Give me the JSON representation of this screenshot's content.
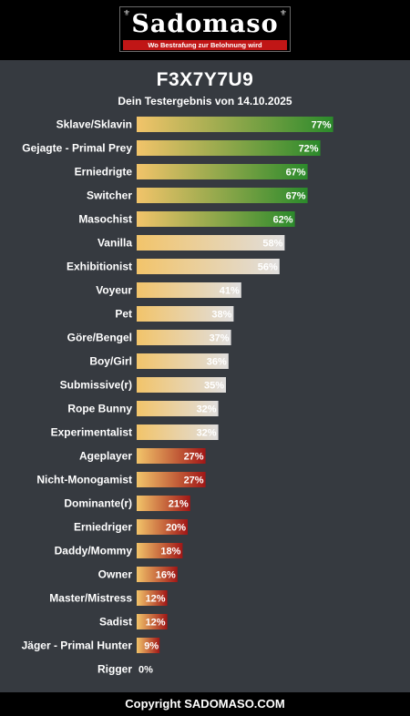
{
  "header": {
    "logo_text": "Sadomaso",
    "logo_tagline": "Wo Bestrafung zur Belohnung wird"
  },
  "result": {
    "code": "F3X7Y7U9",
    "subtitle": "Dein Testergebnis von 14.10.2025"
  },
  "colors": {
    "background": "#363a40",
    "bar_start": "#f2c46a",
    "high": "#2b8a2b",
    "mid": "#e0dede",
    "low": "#a11616",
    "brand_red": "#c01616"
  },
  "chart_data": {
    "type": "bar",
    "orientation": "horizontal",
    "categories": [
      "Sklave/Sklavin",
      "Gejagte - Primal Prey",
      "Erniedrigte",
      "Switcher",
      "Masochist",
      "Vanilla",
      "Exhibitionist",
      "Voyeur",
      "Pet",
      "Göre/Bengel",
      "Boy/Girl",
      "Submissive(r)",
      "Rope Bunny",
      "Experimentalist",
      "Ageplayer",
      "Nicht-Monogamist",
      "Dominante(r)",
      "Erniedriger",
      "Daddy/Mommy",
      "Owner",
      "Master/Mistress",
      "Sadist",
      "Jäger - Primal Hunter",
      "Rigger"
    ],
    "values": [
      77,
      72,
      67,
      67,
      62,
      58,
      56,
      41,
      38,
      37,
      36,
      35,
      32,
      32,
      27,
      27,
      21,
      20,
      18,
      16,
      12,
      12,
      9,
      0
    ],
    "value_labels": [
      "77%",
      "72%",
      "67%",
      "67%",
      "62%",
      "58%",
      "56%",
      "41%",
      "38%",
      "37%",
      "36%",
      "35%",
      "32%",
      "32%",
      "27%",
      "27%",
      "21%",
      "20%",
      "18%",
      "16%",
      "12%",
      "12%",
      "9%",
      "0%"
    ],
    "unit": "%",
    "xlim": [
      0,
      100
    ]
  },
  "footer": {
    "copyright": "Copyright SADOMASO.COM"
  }
}
